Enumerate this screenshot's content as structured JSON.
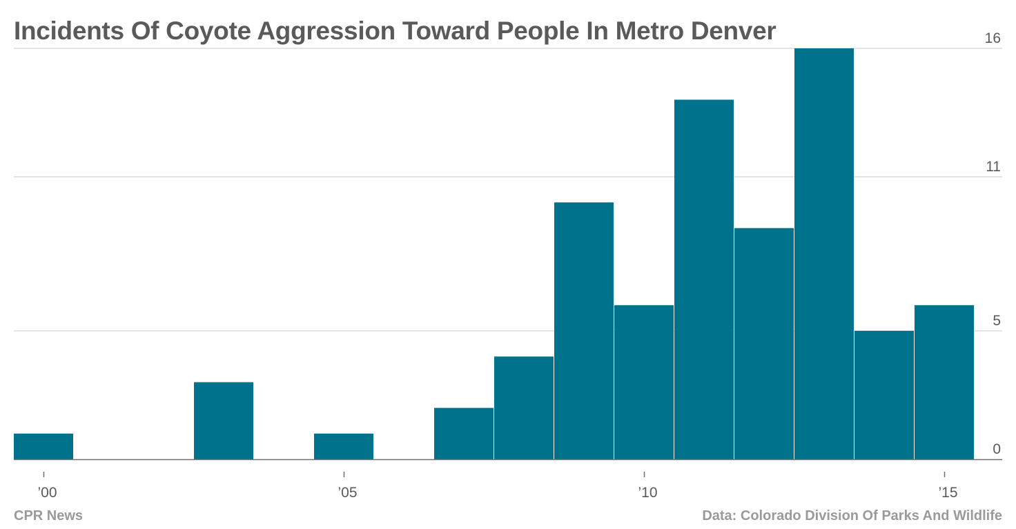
{
  "chart_data": {
    "type": "bar",
    "title": "Incidents Of Coyote Aggression Toward People In Metro Denver",
    "xlabel": "",
    "ylabel": "",
    "x": [
      2000,
      2001,
      2002,
      2003,
      2004,
      2005,
      2006,
      2007,
      2008,
      2009,
      2010,
      2011,
      2012,
      2013,
      2014,
      2015
    ],
    "values": [
      1,
      0,
      0,
      3,
      0,
      1,
      0,
      2,
      4,
      10,
      6,
      14,
      9,
      16,
      5,
      6
    ],
    "ylim": [
      0,
      16
    ],
    "xlim": [
      2000,
      2015
    ],
    "y_ticks": [
      0,
      5,
      11,
      16
    ],
    "y_tick_labels": [
      "0",
      "5",
      "11",
      "16"
    ],
    "x_ticks": [
      2000,
      2005,
      2010,
      2015
    ],
    "x_tick_labels": [
      "’00",
      "’05",
      "’10",
      "’15"
    ],
    "bar_color": "#00728c",
    "grid": true,
    "y_axis_position": "right"
  },
  "footer": {
    "source": "CPR News",
    "data_credit": "Data: Colorado Division Of Parks And Wildlife"
  }
}
